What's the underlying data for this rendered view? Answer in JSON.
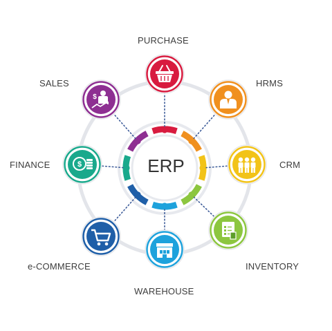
{
  "center": {
    "label": "ERP"
  },
  "modules": [
    {
      "key": "purchase",
      "label": "PURCHASE",
      "color": "#d81b3f",
      "icon": "shopping-basket-icon"
    },
    {
      "key": "hrms",
      "label": "HRMS",
      "color": "#f0901f",
      "icon": "person-icon"
    },
    {
      "key": "crm",
      "label": "CRM",
      "color": "#f2c318",
      "icon": "people-group-icon"
    },
    {
      "key": "inventory",
      "label": "INVENTORY",
      "color": "#8cc63f",
      "icon": "checklist-icon"
    },
    {
      "key": "warehouse",
      "label": "WAREHOUSE",
      "color": "#1ea2dc",
      "icon": "warehouse-icon"
    },
    {
      "key": "ecommerce",
      "label": "e-COMMERCE",
      "color": "#1f5fa8",
      "icon": "shopping-cart-icon"
    },
    {
      "key": "finance",
      "label": "FINANCE",
      "color": "#19a98c",
      "icon": "coins-icon"
    },
    {
      "key": "sales",
      "label": "SALES",
      "color": "#8e2f92",
      "icon": "sales-growth-icon"
    }
  ],
  "colors": {
    "ring": "#e3e5ea",
    "connector": "#3b5a98",
    "text": "#3d3d3d"
  }
}
